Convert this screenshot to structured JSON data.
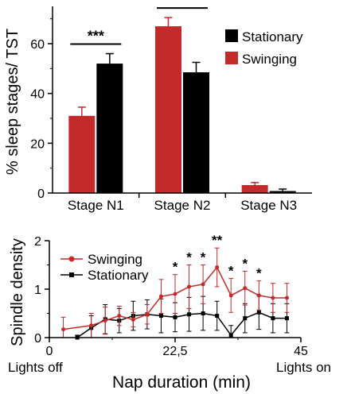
{
  "colors": {
    "swinging": "#c52a2a",
    "stationary": "#000000"
  },
  "chart_data": [
    {
      "type": "bar",
      "title": "",
      "ylabel": "% sleep stages/ TST",
      "xlabel": "",
      "ylim": [
        0,
        75
      ],
      "yticks": [
        "0",
        "20",
        "40",
        "60"
      ],
      "categories": [
        "Stage N1",
        "Stage N2",
        "Stage N3"
      ],
      "series": [
        {
          "name": "Swinging",
          "color": "#c52a2a",
          "values": [
            31,
            67,
            3.2
          ],
          "errors": [
            3.5,
            3.5,
            1.0
          ]
        },
        {
          "name": "Stationary",
          "color": "#000000",
          "values": [
            52,
            48.5,
            0.8
          ],
          "errors": [
            4,
            4,
            0.8
          ]
        }
      ],
      "significance": [
        {
          "category": "Stage N1",
          "label": "***"
        },
        {
          "category": "Stage N2",
          "label": "***"
        }
      ],
      "legend": [
        "Stationary",
        "Swinging"
      ],
      "legend_position": "top-right"
    },
    {
      "type": "line",
      "title": "",
      "ylabel": "Spindle density",
      "xlabel": "Nap duration (min)",
      "xlim": [
        0,
        45
      ],
      "ylim": [
        0,
        2
      ],
      "xticks": [
        "0",
        "22,5",
        "45"
      ],
      "yticks": [
        "0",
        "1",
        "2"
      ],
      "x_annotations": {
        "start": "Lights off",
        "end": "Lights on"
      },
      "x": [
        2.5,
        7.5,
        10,
        12.5,
        15,
        17.5,
        20,
        22.5,
        25,
        27.5,
        30,
        32.5,
        35,
        37.5,
        40,
        42.5
      ],
      "series": [
        {
          "name": "Swinging",
          "color": "#c52a2a",
          "marker": "circle",
          "x": [
            2.5,
            7.5,
            10,
            12.5,
            15,
            17.5,
            20,
            22.5,
            25,
            27.5,
            30,
            32.5,
            35,
            37.5,
            40,
            42.5
          ],
          "values": [
            0.17,
            0.25,
            0.35,
            0.45,
            0.37,
            0.48,
            0.85,
            0.9,
            1.05,
            1.1,
            1.45,
            0.87,
            1.02,
            0.87,
            0.82,
            0.82
          ],
          "errors": [
            0.25,
            0.25,
            0.28,
            0.2,
            0.15,
            0.2,
            0.35,
            0.4,
            0.45,
            0.4,
            0.4,
            0.35,
            0.35,
            0.3,
            0.3,
            0.3
          ]
        },
        {
          "name": "Stationary",
          "color": "#000000",
          "marker": "square",
          "x": [
            5,
            7.5,
            10,
            12.5,
            15,
            17.5,
            20,
            22.5,
            25,
            27.5,
            30,
            32.5,
            35,
            37.5,
            40,
            42.5
          ],
          "values": [
            0,
            0.2,
            0.38,
            0.35,
            0.45,
            0.48,
            0.45,
            0.42,
            0.48,
            0.5,
            0.45,
            0.05,
            0.4,
            0.52,
            0.4,
            0.4
          ],
          "errors": [
            0.05,
            0.25,
            0.3,
            0.25,
            0.3,
            0.3,
            0.35,
            0.3,
            0.35,
            0.35,
            0.3,
            0.2,
            0.3,
            0.35,
            0.3,
            0.3
          ]
        }
      ],
      "significance": [
        {
          "x": 22.5,
          "label": "*"
        },
        {
          "x": 25,
          "label": "*"
        },
        {
          "x": 27.5,
          "label": "*"
        },
        {
          "x": 30,
          "label": "**"
        },
        {
          "x": 32.5,
          "label": "*"
        },
        {
          "x": 35,
          "label": "*"
        },
        {
          "x": 37.5,
          "label": "*"
        }
      ],
      "legend": [
        "Swinging",
        "Stationary"
      ],
      "legend_position": "top-left"
    }
  ]
}
